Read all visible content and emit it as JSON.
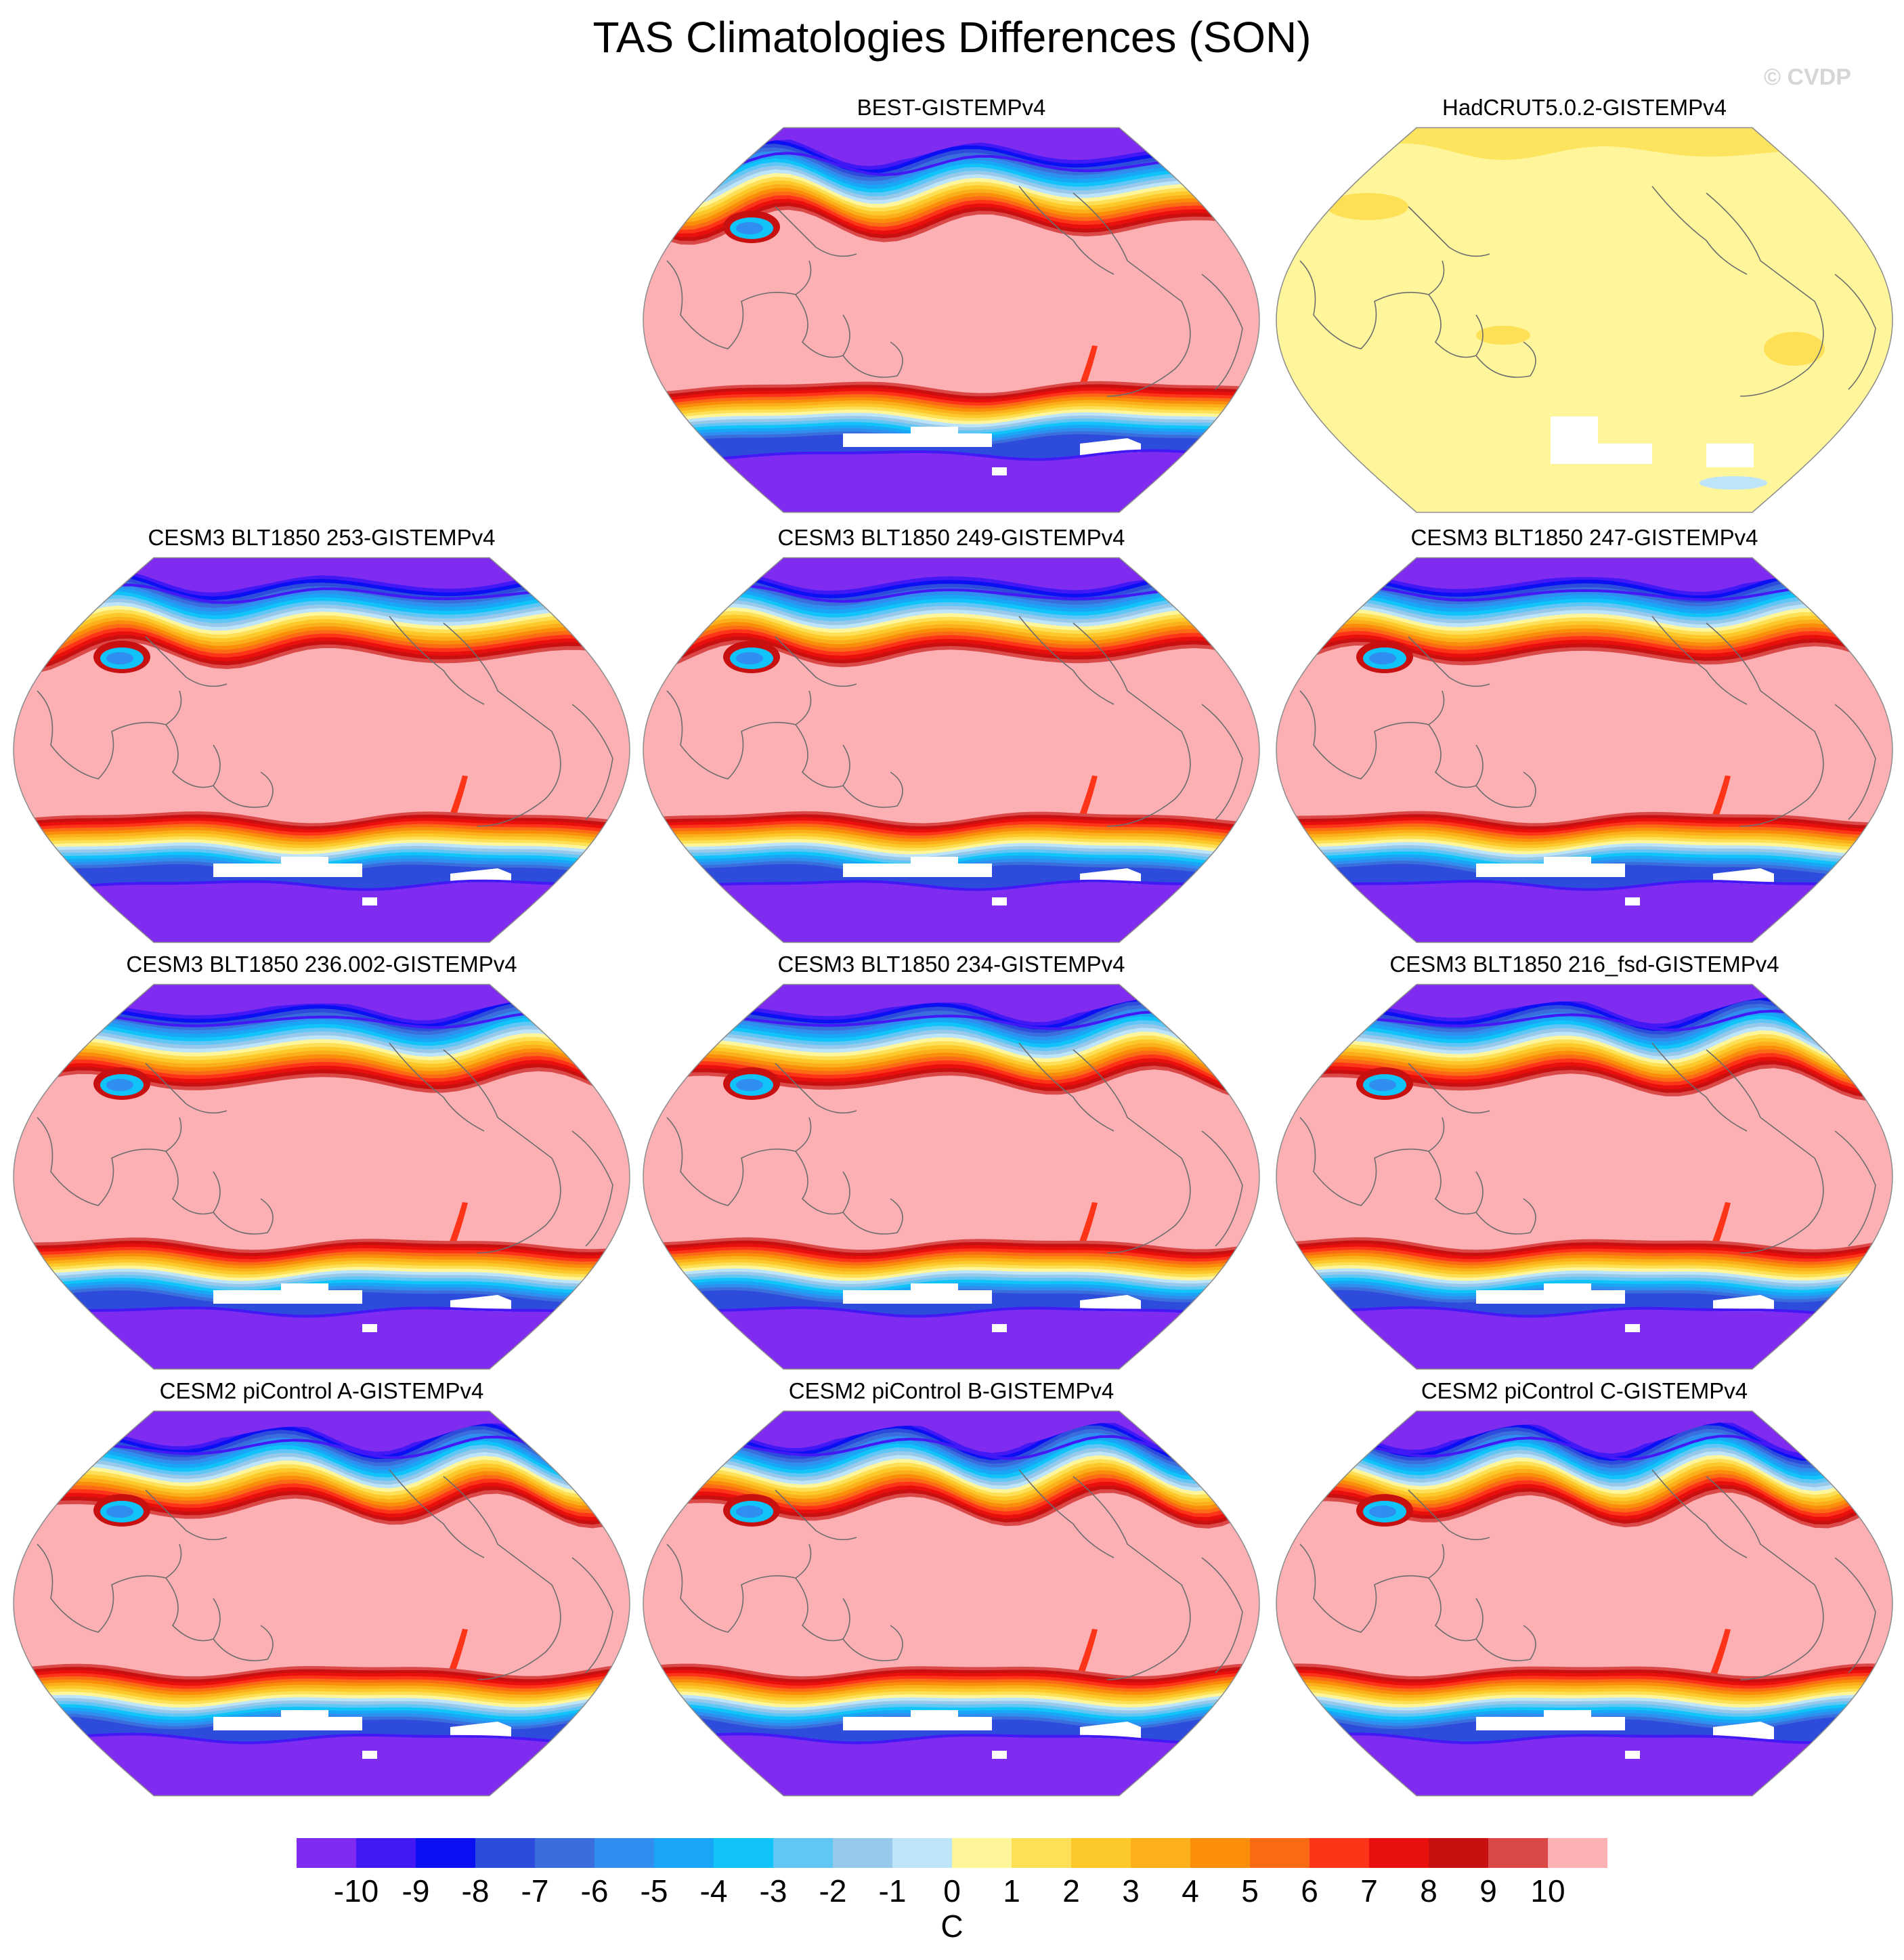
{
  "title": "TAS Climatologies Differences (SON)",
  "watermark": "© CVDP",
  "chart_data": {
    "type": "heatmap",
    "title": "TAS Climatologies Differences (SON)",
    "projection": "Robinson, Pacific-centered",
    "panels": [
      {
        "id": "best",
        "title": "BEST-GISTEMPv4",
        "pattern": "polar_cold"
      },
      {
        "id": "hadcrut",
        "title": "HadCRUT5.0.2-GISTEMPv4",
        "pattern": "near_zero"
      },
      {
        "id": "cesm3-253",
        "title": "CESM3 BLT1850 253-GISTEMPv4",
        "pattern": "polar_cold"
      },
      {
        "id": "cesm3-249",
        "title": "CESM3 BLT1850 249-GISTEMPv4",
        "pattern": "polar_cold"
      },
      {
        "id": "cesm3-247",
        "title": "CESM3 BLT1850 247-GISTEMPv4",
        "pattern": "polar_cold"
      },
      {
        "id": "cesm3-236",
        "title": "CESM3 BLT1850 236.002-GISTEMPv4",
        "pattern": "polar_cold"
      },
      {
        "id": "cesm3-234",
        "title": "CESM3 BLT1850 234-GISTEMPv4",
        "pattern": "polar_cold"
      },
      {
        "id": "cesm3-216",
        "title": "CESM3 BLT1850 216_fsd-GISTEMPv4",
        "pattern": "polar_cold"
      },
      {
        "id": "cesm2-a",
        "title": "CESM2 piControl A-GISTEMPv4",
        "pattern": "polar_cold"
      },
      {
        "id": "cesm2-b",
        "title": "CESM2 piControl B-GISTEMPv4",
        "pattern": "polar_cold"
      },
      {
        "id": "cesm2-c",
        "title": "CESM2 piControl C-GISTEMPv4",
        "pattern": "polar_cold"
      }
    ],
    "colorbar": {
      "units": "C",
      "levels": [
        -10,
        -9,
        -8,
        -7,
        -6,
        -5,
        -4,
        -3,
        -2,
        -1,
        0,
        1,
        2,
        3,
        4,
        5,
        6,
        7,
        8,
        9,
        10
      ],
      "tick_labels": [
        "-10",
        "-9",
        "-8",
        "-7",
        "-6",
        "-5",
        "-4",
        "-3",
        "-2",
        "-1",
        "0",
        "1",
        "2",
        "3",
        "4",
        "5",
        "6",
        "7",
        "8",
        "9",
        "10"
      ],
      "colors": [
        "#7f2bf0",
        "#4219f5",
        "#0a10f2",
        "#2e4cdc",
        "#3a6edd",
        "#2f8ef0",
        "#1aa6f7",
        "#10c3f8",
        "#5fc6f5",
        "#98c9ea",
        "#bde4f8",
        "#fff69b",
        "#fde055",
        "#fdc82a",
        "#fbb01b",
        "#fa8d0a",
        "#fb6a14",
        "#fd3418",
        "#e80f0c",
        "#c81010",
        "#da4848",
        "#fcb0b3"
      ]
    }
  }
}
